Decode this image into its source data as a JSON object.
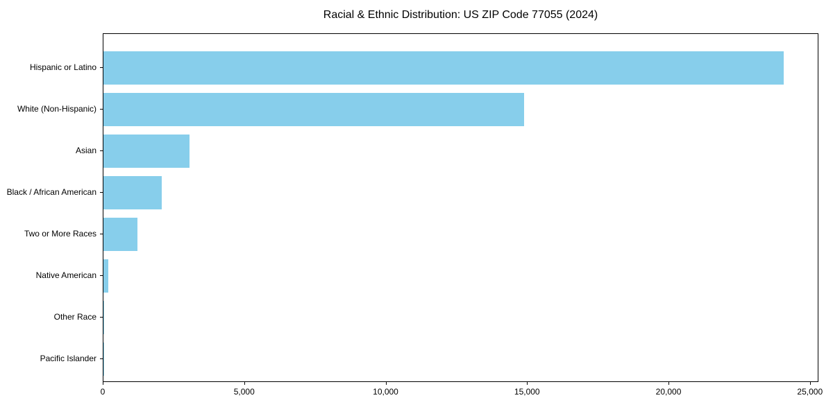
{
  "chart_data": {
    "type": "bar",
    "orientation": "horizontal",
    "title": "Racial & Ethnic Distribution: US ZIP Code 77055 (2024)",
    "categories": [
      "Hispanic or Latino",
      "White (Non-Hispanic)",
      "Asian",
      "Black / African American",
      "Two or More Races",
      "Native American",
      "Other Race",
      "Pacific Islander"
    ],
    "values": [
      24090,
      14890,
      3060,
      2060,
      1200,
      160,
      30,
      10
    ],
    "xlabel": "",
    "ylabel": "",
    "xlim": [
      0,
      25300
    ],
    "x_ticks": [
      0,
      5000,
      10000,
      15000,
      20000,
      25000
    ],
    "x_tick_labels": [
      "0",
      "5,000",
      "10,000",
      "15,000",
      "20,000",
      "25,000"
    ],
    "bar_color": "#87CEEB",
    "axis_color": "#000000",
    "background_color": "#FFFFFF",
    "grid": false,
    "legend": null
  }
}
